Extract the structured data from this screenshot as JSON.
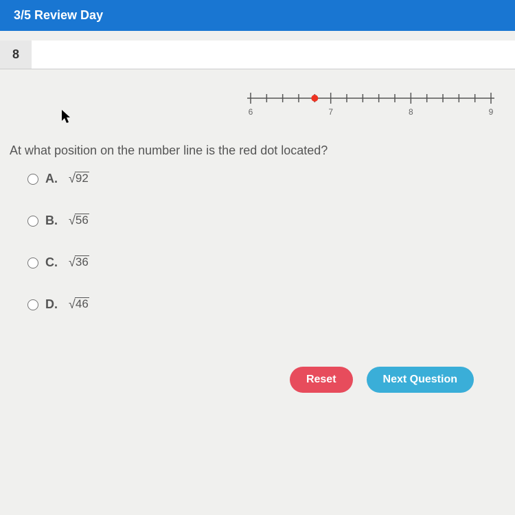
{
  "header": {
    "title": "3/5 Review Day"
  },
  "question": {
    "number": "8",
    "text": "At what position on the number line is the red dot located?"
  },
  "numberLine": {
    "min": 6,
    "max": 9,
    "majorTicks": [
      6,
      7,
      8,
      9
    ],
    "minorStep": 0.2,
    "dotPosition": 6.8,
    "lineColor": "#555555",
    "dotColor": "#ee3322",
    "labelColor": "#666666",
    "labelFontSize": 12
  },
  "choices": [
    {
      "letter": "A.",
      "sqrt": "92"
    },
    {
      "letter": "B.",
      "sqrt": "56"
    },
    {
      "letter": "C.",
      "sqrt": "36"
    },
    {
      "letter": "D.",
      "sqrt": "46"
    }
  ],
  "buttons": {
    "reset": "Reset",
    "next": "Next Question"
  }
}
